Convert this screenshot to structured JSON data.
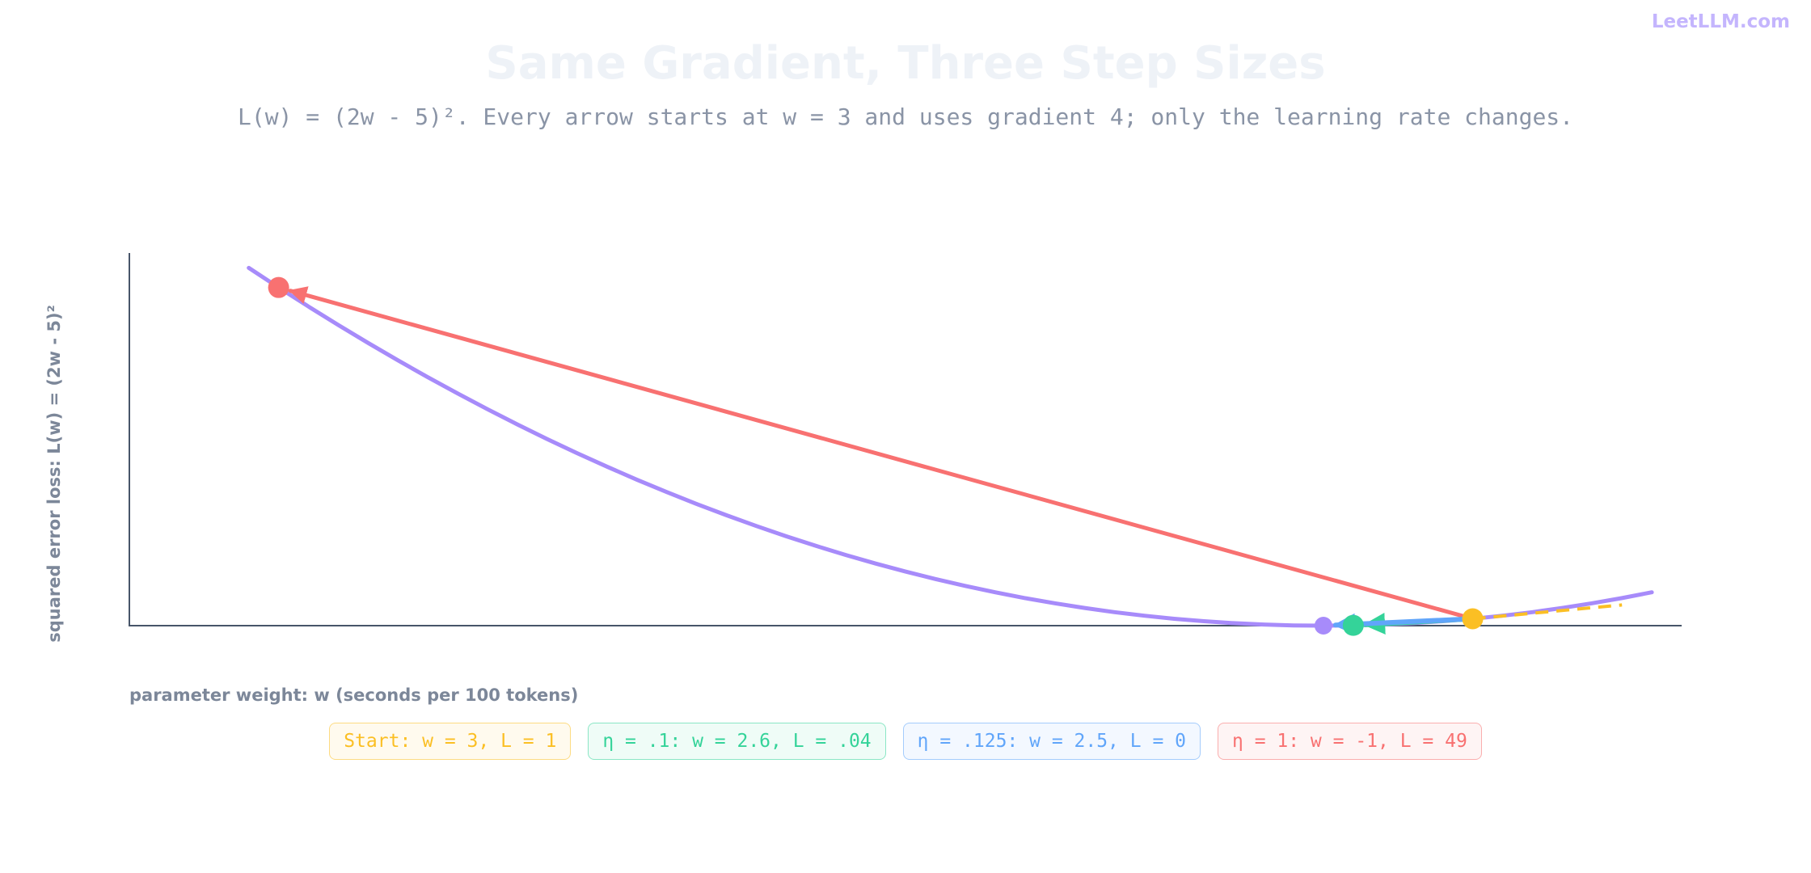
{
  "brand": "LeetLLM.com",
  "chart_data": {
    "type": "line",
    "title": "Same Gradient, Three Step Sizes",
    "subtitle": "L(w) = (2w - 5)². Every arrow starts at w = 3 and uses gradient 4; only the learning rate changes.",
    "x_label": "parameter weight: w (seconds per 100 tokens)",
    "y_label": "squared error loss: L(w) = (2w - 5)²",
    "xlim": [
      -1.5,
      3.7
    ],
    "ylim": [
      0,
      54
    ],
    "curve": {
      "color": "#a78bfa",
      "x": [
        -1.1,
        -1.0,
        -0.9,
        -0.8,
        -0.7,
        -0.6,
        -0.5,
        -0.4,
        -0.3,
        -0.2,
        -0.1,
        0,
        0.1,
        0.2,
        0.3,
        0.4,
        0.5,
        0.6,
        0.7,
        0.8,
        0.9,
        1.0,
        1.1,
        1.2,
        1.3,
        1.4,
        1.5,
        1.6,
        1.7,
        1.8,
        1.9,
        2.0,
        2.1,
        2.2,
        2.3,
        2.4,
        2.5,
        2.6,
        2.7,
        2.8,
        2.9,
        3.0,
        3.1,
        3.2,
        3.3,
        3.4,
        3.5,
        3.6
      ],
      "y": [
        51.84,
        49,
        46.24,
        43.56,
        40.96,
        38.44,
        36,
        33.64,
        31.36,
        29.16,
        27.04,
        25,
        23.04,
        21.16,
        19.36,
        17.64,
        16,
        14.44,
        12.96,
        11.56,
        10.24,
        9,
        7.84,
        6.76,
        5.76,
        4.84,
        4,
        3.24,
        2.56,
        1.96,
        1.44,
        1,
        0.64,
        0.36,
        0.16,
        0.04,
        0,
        0.04,
        0.16,
        0.36,
        0.64,
        1,
        1.44,
        1.96,
        2.56,
        3.24,
        4,
        4.84
      ]
    },
    "tangent": {
      "color": "#fbbf24",
      "x": [
        3,
        3.5
      ],
      "y": [
        1,
        3
      ]
    },
    "steps": [
      {
        "label": "Start: w = 3, L = 1",
        "color": "#fbbf24",
        "point_color": "#fbbf24",
        "w": 3,
        "loss": 1
      },
      {
        "label": "η = .1: w = 2.6, L = .04",
        "color": "#34d399",
        "point_color": "#34d399",
        "w": 2.6,
        "loss": 0.04
      },
      {
        "label": "η = .125: w = 2.5, L = 0",
        "color": "#60a5fa",
        "point_color": "#a78bfa",
        "w": 2.5,
        "loss": 0
      },
      {
        "label": "η = 1: w = -1, L = 49",
        "color": "#f87171",
        "point_color": "#f87171",
        "w": -1,
        "loss": 49
      }
    ]
  }
}
